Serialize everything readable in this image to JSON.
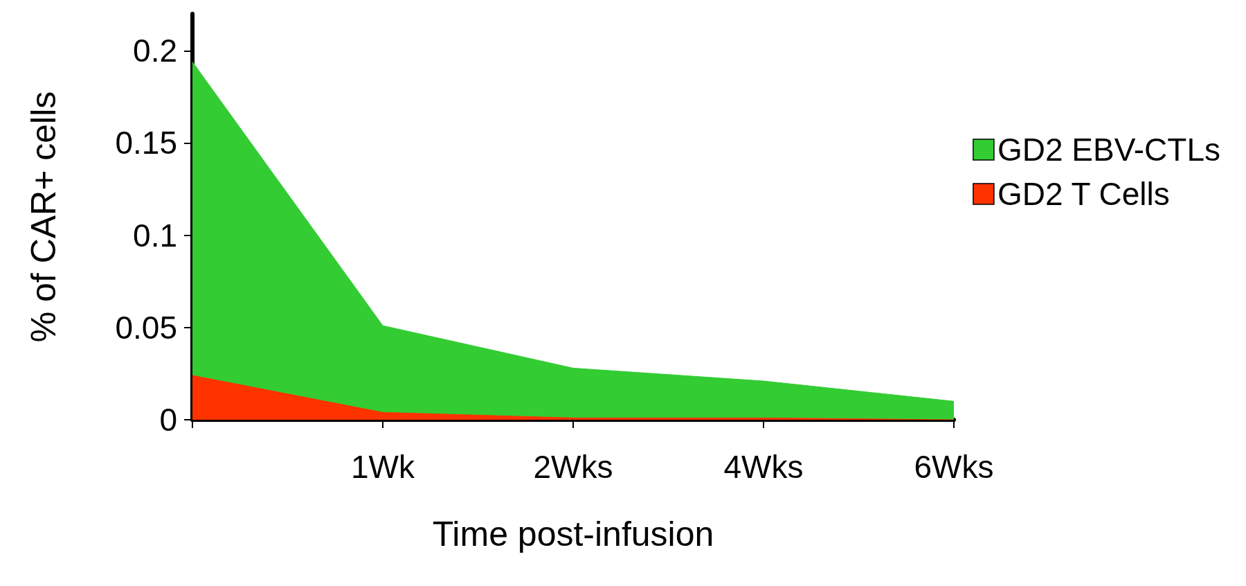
{
  "chart_data": {
    "type": "area",
    "xlabel": "Time post-infusion",
    "ylabel": "% of CAR+ cells",
    "categories": [
      null,
      "1Wk",
      "2Wks",
      "4Wks",
      "6Wks"
    ],
    "series": [
      {
        "name": "GD2 EBV-CTLs",
        "color": "#33cc33",
        "values": [
          0.194,
          0.051,
          0.028,
          0.021,
          0.01
        ]
      },
      {
        "name": "GD2 T Cells",
        "color": "#ff3300",
        "values": [
          0.024,
          0.004,
          0.001,
          0.001,
          0
        ]
      }
    ],
    "ylim": [
      0,
      0.22
    ],
    "yticks": [
      0,
      0.05,
      0.1,
      0.15,
      0.2
    ],
    "grid": false,
    "legend": "right"
  }
}
